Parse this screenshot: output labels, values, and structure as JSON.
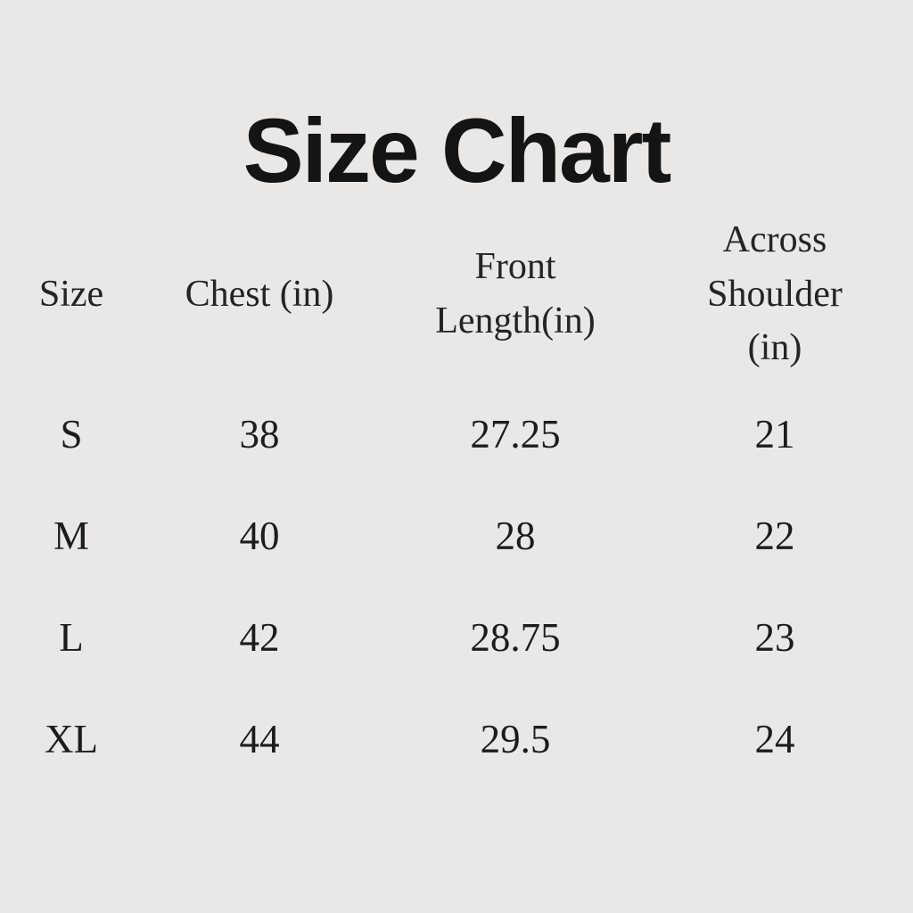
{
  "page": {
    "title": "Size Chart",
    "background_color": "#e9e8e7",
    "title_color": "#141414",
    "text_color": "#1c1c1c"
  },
  "chart_data": {
    "type": "table",
    "title": "Size Chart",
    "columns": [
      "Size",
      "Chest (in)",
      "Front Length(in)",
      "Across Shoulder (in)"
    ],
    "rows": [
      {
        "size": "S",
        "chest_in": 38,
        "front_length_in": 27.25,
        "across_shoulder_in": 21
      },
      {
        "size": "M",
        "chest_in": 40,
        "front_length_in": 28,
        "across_shoulder_in": 22
      },
      {
        "size": "L",
        "chest_in": 42,
        "front_length_in": 28.75,
        "across_shoulder_in": 23
      },
      {
        "size": "XL",
        "chest_in": 44,
        "front_length_in": 29.5,
        "across_shoulder_in": 24
      }
    ],
    "legend": false,
    "grid": false
  },
  "table": {
    "headers": [
      "Size",
      "Chest (in)",
      "Front\nLength(in)",
      "Across\nShoulder\n(in)"
    ],
    "cells": [
      [
        "S",
        "38",
        "27.25",
        "21"
      ],
      [
        "M",
        "40",
        "28",
        "22"
      ],
      [
        "L",
        "42",
        "28.75",
        "23"
      ],
      [
        "XL",
        "44",
        "29.5",
        "24"
      ]
    ]
  }
}
